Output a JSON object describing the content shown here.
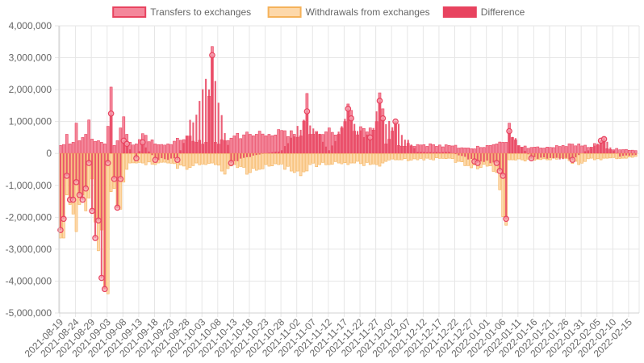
{
  "chart_data": {
    "type": "bar",
    "title": "",
    "xlabel": "",
    "ylabel": "",
    "ylim": [
      -5000000,
      4000000
    ],
    "y_ticks": [
      "4,000,000",
      "3,000,000",
      "2,000,000",
      "1,000,000",
      "0",
      "-1,000,000",
      "-2,000,000",
      "-3,000,000",
      "-4,000,000",
      "-5,000,000"
    ],
    "y_tick_values": [
      4000000,
      3000000,
      2000000,
      1000000,
      0,
      -1000000,
      -2000000,
      -3000000,
      -4000000,
      -5000000
    ],
    "x_tick_labels": [
      "2021-08-19",
      "2021-08-24",
      "2021-08-29",
      "2021-09-03",
      "2021-09-08",
      "2021-09-13",
      "2021-09-18",
      "2021-09-23",
      "2021-09-28",
      "2021-10-03",
      "2021-10-08",
      "2021-10-13",
      "2021-10-18",
      "2021-10-23",
      "2021-10-28",
      "2021-11-02",
      "2021-11-07",
      "2021-11-12",
      "2021-11-17",
      "2021-11-22",
      "2021-11-27",
      "2021-12-02",
      "2021-12-07",
      "2021-12-12",
      "2021-12-17",
      "2021-12-22",
      "2021-12-27",
      "2022-01-01",
      "2022-01-06",
      "2022-01-11",
      "2022-01-16",
      "2022-01-21",
      "2022-01-26",
      "2022-01-31",
      "2022-02-05",
      "2022-02-10",
      "2022-02-15"
    ],
    "grid": true,
    "legend_position": "top",
    "legend": [
      {
        "label": "Transfers to exchanges",
        "fill": "#f4879b",
        "stroke": "#e8435f"
      },
      {
        "label": "Withdrawals from exchanges",
        "fill": "#fdd8aa",
        "stroke": "#f5b25a"
      },
      {
        "label": "Difference",
        "fill": "#e8435f",
        "stroke": "#e8435f"
      }
    ],
    "colors": {
      "transfers": "#e8435f",
      "withdrawals": "#f5b25a",
      "difference": "#e8435f",
      "grid": "#e6e6e6",
      "tick_text": "#666666"
    },
    "series": [
      {
        "name": "Transfers to exchanges",
        "anchors": [
          [
            "2021-08-19",
            250000
          ],
          [
            "2021-08-20",
            280000
          ],
          [
            "2021-08-21",
            600000
          ],
          [
            "2021-08-22",
            300000
          ],
          [
            "2021-08-23",
            350000
          ],
          [
            "2021-08-24",
            950000
          ],
          [
            "2021-08-25",
            400000
          ],
          [
            "2021-08-26",
            500000
          ],
          [
            "2021-08-27",
            600000
          ],
          [
            "2021-08-28",
            1050000
          ],
          [
            "2021-08-29",
            450000
          ],
          [
            "2021-08-30",
            380000
          ],
          [
            "2021-08-31",
            400000
          ],
          [
            "2021-09-01",
            350000
          ],
          [
            "2021-09-02",
            300000
          ],
          [
            "2021-09-03",
            850000
          ],
          [
            "2021-09-04",
            2080000
          ],
          [
            "2021-09-05",
            250000
          ],
          [
            "2021-09-06",
            400000
          ],
          [
            "2021-09-07",
            800000
          ],
          [
            "2021-09-08",
            1150000
          ],
          [
            "2021-09-09",
            600000
          ],
          [
            "2021-09-10",
            350000
          ],
          [
            "2021-09-12",
            300000
          ],
          [
            "2021-09-14",
            620000
          ],
          [
            "2021-09-18",
            300000
          ],
          [
            "2021-09-22",
            300000
          ],
          [
            "2021-09-28",
            550000
          ],
          [
            "2021-10-01",
            350000
          ],
          [
            "2021-10-04",
            350000
          ],
          [
            "2021-10-06",
            3350000
          ],
          [
            "2021-10-07",
            350000
          ],
          [
            "2021-10-10",
            400000
          ],
          [
            "2021-10-13",
            550000
          ],
          [
            "2021-10-18",
            600000
          ],
          [
            "2021-10-21",
            700000
          ],
          [
            "2021-10-24",
            600000
          ],
          [
            "2021-10-27",
            750000
          ],
          [
            "2021-11-01",
            600000
          ],
          [
            "2021-11-03",
            550000
          ],
          [
            "2021-11-05",
            1880000
          ],
          [
            "2021-11-06",
            600000
          ],
          [
            "2021-11-09",
            600000
          ],
          [
            "2021-11-12",
            800000
          ],
          [
            "2021-11-15",
            600000
          ],
          [
            "2021-11-18",
            1550000
          ],
          [
            "2021-11-19",
            1350000
          ],
          [
            "2021-11-20",
            700000
          ],
          [
            "2021-11-25",
            800000
          ],
          [
            "2021-11-27",
            1000000
          ],
          [
            "2021-11-28",
            1900000
          ],
          [
            "2021-11-29",
            1400000
          ],
          [
            "2021-11-30",
            300000
          ],
          [
            "2021-12-03",
            1000000
          ],
          [
            "2021-12-04",
            250000
          ],
          [
            "2021-12-10",
            280000
          ],
          [
            "2021-12-20",
            250000
          ],
          [
            "2021-12-27",
            150000
          ],
          [
            "2022-01-01",
            250000
          ],
          [
            "2022-01-04",
            300000
          ],
          [
            "2022-01-07",
            350000
          ],
          [
            "2022-01-08",
            950000
          ],
          [
            "2022-01-09",
            500000
          ],
          [
            "2022-01-12",
            200000
          ],
          [
            "2022-01-20",
            200000
          ],
          [
            "2022-01-25",
            250000
          ],
          [
            "2022-01-30",
            300000
          ],
          [
            "2022-02-03",
            200000
          ],
          [
            "2022-02-06",
            400000
          ],
          [
            "2022-02-07",
            500000
          ],
          [
            "2022-02-08",
            150000
          ],
          [
            "2022-02-13",
            120000
          ],
          [
            "2022-02-18",
            100000
          ]
        ]
      },
      {
        "name": "Withdrawals from exchanges",
        "anchors": [
          [
            "2021-08-19",
            -2650000
          ],
          [
            "2021-08-20",
            -2650000
          ],
          [
            "2021-08-21",
            -1300000
          ],
          [
            "2021-08-22",
            -1600000
          ],
          [
            "2021-08-23",
            -1900000
          ],
          [
            "2021-08-24",
            -2450000
          ],
          [
            "2021-08-25",
            -1600000
          ],
          [
            "2021-08-26",
            -1300000
          ],
          [
            "2021-08-27",
            -1800000
          ],
          [
            "2021-08-28",
            -1400000
          ],
          [
            "2021-08-29",
            -800000
          ],
          [
            "2021-08-30",
            -2150000
          ],
          [
            "2021-08-31",
            -3050000
          ],
          [
            "2021-09-01",
            -2400000
          ],
          [
            "2021-09-02",
            -4250000
          ],
          [
            "2021-09-03",
            -4400000
          ],
          [
            "2021-09-04",
            -1200000
          ],
          [
            "2021-09-05",
            -1100000
          ],
          [
            "2021-09-06",
            -1700000
          ],
          [
            "2021-09-07",
            -1750000
          ],
          [
            "2021-09-08",
            -900000
          ],
          [
            "2021-09-09",
            -500000
          ],
          [
            "2021-09-10",
            -300000
          ],
          [
            "2021-09-12",
            -300000
          ],
          [
            "2021-09-14",
            -300000
          ],
          [
            "2021-09-18",
            -350000
          ],
          [
            "2021-09-22",
            -300000
          ],
          [
            "2021-09-28",
            -500000
          ],
          [
            "2021-10-01",
            -300000
          ],
          [
            "2021-10-04",
            -350000
          ],
          [
            "2021-10-06",
            -300000
          ],
          [
            "2021-10-07",
            -350000
          ],
          [
            "2021-10-10",
            -650000
          ],
          [
            "2021-10-13",
            -350000
          ],
          [
            "2021-10-18",
            -600000
          ],
          [
            "2021-10-21",
            -500000
          ],
          [
            "2021-10-24",
            -400000
          ],
          [
            "2021-10-27",
            -350000
          ],
          [
            "2021-11-01",
            -600000
          ],
          [
            "2021-11-03",
            -700000
          ],
          [
            "2021-11-05",
            -550000
          ],
          [
            "2021-11-06",
            -350000
          ],
          [
            "2021-11-09",
            -350000
          ],
          [
            "2021-11-12",
            -350000
          ],
          [
            "2021-11-15",
            -300000
          ],
          [
            "2021-11-18",
            -350000
          ],
          [
            "2021-11-19",
            -300000
          ],
          [
            "2021-11-20",
            -300000
          ],
          [
            "2021-11-25",
            -350000
          ],
          [
            "2021-11-27",
            -350000
          ],
          [
            "2021-11-28",
            -400000
          ],
          [
            "2021-11-29",
            -300000
          ],
          [
            "2021-11-30",
            -250000
          ],
          [
            "2021-12-03",
            -200000
          ],
          [
            "2021-12-04",
            -200000
          ],
          [
            "2021-12-10",
            -200000
          ],
          [
            "2021-12-20",
            -150000
          ],
          [
            "2021-12-27",
            -450000
          ],
          [
            "2022-01-01",
            -400000
          ],
          [
            "2022-01-04",
            -600000
          ],
          [
            "2022-01-07",
            -2250000
          ],
          [
            "2022-01-08",
            -200000
          ],
          [
            "2022-01-09",
            -200000
          ],
          [
            "2022-01-12",
            -200000
          ],
          [
            "2022-01-20",
            -200000
          ],
          [
            "2022-01-25",
            -150000
          ],
          [
            "2022-01-30",
            -350000
          ],
          [
            "2022-02-03",
            -150000
          ],
          [
            "2022-02-06",
            -200000
          ],
          [
            "2022-02-07",
            -150000
          ],
          [
            "2022-02-08",
            -150000
          ],
          [
            "2022-02-13",
            -150000
          ],
          [
            "2022-02-18",
            -100000
          ]
        ]
      },
      {
        "name": "Difference",
        "points": [
          [
            "2021-08-19",
            -2400000
          ],
          [
            "2021-08-20",
            -2050000
          ],
          [
            "2021-08-21",
            -700000
          ],
          [
            "2021-08-22",
            -1450000
          ],
          [
            "2021-08-23",
            -1450000
          ],
          [
            "2021-08-24",
            -900000
          ],
          [
            "2021-08-25",
            -1300000
          ],
          [
            "2021-08-26",
            -1450000
          ],
          [
            "2021-08-27",
            -1100000
          ],
          [
            "2021-08-28",
            -300000
          ],
          [
            "2021-08-29",
            -1800000
          ],
          [
            "2021-08-30",
            -2650000
          ],
          [
            "2021-08-31",
            -2100000
          ],
          [
            "2021-09-01",
            -3900000
          ],
          [
            "2021-09-02",
            -4250000
          ],
          [
            "2021-09-03",
            -300000
          ],
          [
            "2021-09-04",
            1250000
          ],
          [
            "2021-09-05",
            -800000
          ],
          [
            "2021-09-06",
            -1700000
          ],
          [
            "2021-09-07",
            -800000
          ],
          [
            "2021-09-08",
            400000
          ],
          [
            "2021-09-09",
            300000
          ],
          [
            "2021-09-12",
            -150000
          ],
          [
            "2021-09-14",
            350000
          ],
          [
            "2021-09-18",
            -200000
          ],
          [
            "2021-09-25",
            -200000
          ],
          [
            "2021-10-06",
            3080000
          ],
          [
            "2021-10-12",
            -300000
          ],
          [
            "2021-10-20",
            -50000
          ],
          [
            "2021-10-28",
            100000
          ],
          [
            "2021-11-05",
            1320000
          ],
          [
            "2021-11-12",
            100000
          ],
          [
            "2021-11-18",
            1400000
          ],
          [
            "2021-11-19",
            1100000
          ],
          [
            "2021-11-25",
            500000
          ],
          [
            "2021-11-28",
            1650000
          ],
          [
            "2021-11-29",
            1100000
          ],
          [
            "2021-12-03",
            1000000
          ],
          [
            "2021-12-10",
            50000
          ],
          [
            "2021-12-20",
            50000
          ],
          [
            "2021-12-28",
            -250000
          ],
          [
            "2021-12-29",
            -300000
          ],
          [
            "2022-01-04",
            -300000
          ],
          [
            "2022-01-05",
            -550000
          ],
          [
            "2022-01-06",
            -700000
          ],
          [
            "2022-01-07",
            -2050000
          ],
          [
            "2022-01-08",
            700000
          ],
          [
            "2022-01-15",
            -150000
          ],
          [
            "2022-01-28",
            -200000
          ],
          [
            "2022-02-06",
            400000
          ],
          [
            "2022-02-07",
            450000
          ],
          [
            "2022-02-12",
            -100000
          ],
          [
            "2022-02-17",
            -50000
          ]
        ]
      }
    ]
  }
}
